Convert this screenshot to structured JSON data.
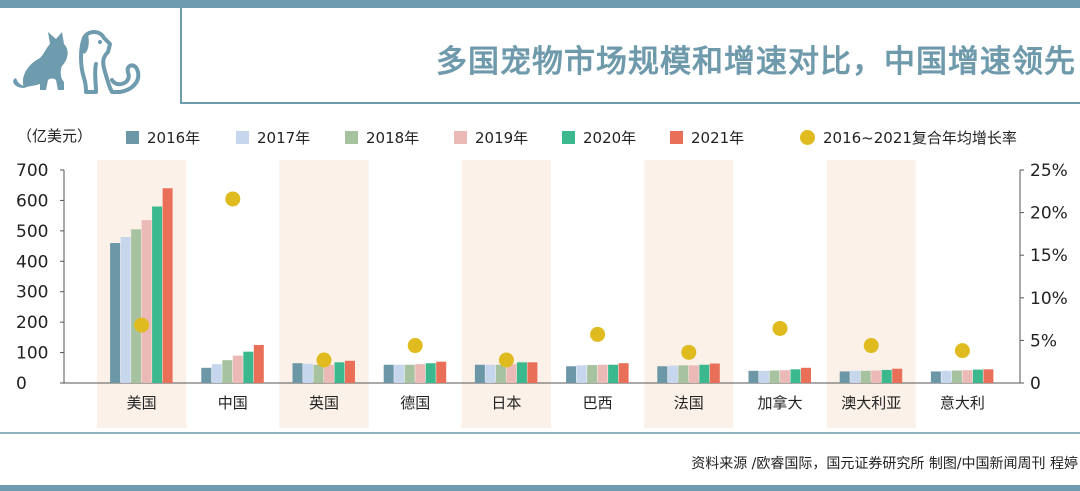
{
  "header": {
    "title": "多国宠物市场规模和增速对比，中国增速领先",
    "icons": [
      "cat-icon",
      "dog-icon"
    ]
  },
  "colors": {
    "frame": "#6e9bad",
    "title": "#6f9aac",
    "band": "#fbf1e9",
    "cagr_dot": "#e0bb1f"
  },
  "chart_data": {
    "type": "bar",
    "unit_label": "（亿美元）",
    "categories": [
      "美国",
      "中国",
      "英国",
      "德国",
      "日本",
      "巴西",
      "法国",
      "加拿大",
      "澳大利亚",
      "意大利"
    ],
    "series": [
      {
        "name": "2016年",
        "color": "#6b97a7",
        "values": [
          460,
          50,
          65,
          60,
          60,
          55,
          55,
          40,
          38,
          38
        ]
      },
      {
        "name": "2017年",
        "color": "#c5d6ed",
        "values": [
          480,
          62,
          63,
          60,
          60,
          58,
          57,
          40,
          40,
          40
        ]
      },
      {
        "name": "2018年",
        "color": "#a6c29e",
        "values": [
          505,
          75,
          60,
          60,
          60,
          59,
          58,
          41,
          40,
          41
        ]
      },
      {
        "name": "2019年",
        "color": "#ebbab6",
        "values": [
          535,
          90,
          60,
          62,
          62,
          60,
          58,
          42,
          41,
          42
        ]
      },
      {
        "name": "2020年",
        "color": "#3cb88e",
        "values": [
          580,
          103,
          68,
          65,
          68,
          60,
          60,
          45,
          43,
          44
        ]
      },
      {
        "name": "2021年",
        "color": "#e96f59",
        "values": [
          640,
          125,
          73,
          70,
          68,
          65,
          64,
          50,
          47,
          45
        ]
      }
    ],
    "cagr": {
      "name": "2016~2021复合年均增长率",
      "unit": "%",
      "values": [
        6.8,
        21.6,
        2.7,
        4.4,
        2.7,
        5.7,
        3.6,
        6.4,
        4.4,
        3.8
      ]
    },
    "ylim": [
      0,
      700
    ],
    "yticks": [
      0,
      100,
      200,
      300,
      400,
      500,
      600,
      700
    ],
    "y2lim": [
      0,
      25
    ],
    "y2ticks": [
      "0",
      "5%",
      "10%",
      "15%",
      "20%",
      "25%"
    ],
    "highlight_bands": [
      "美国",
      "英国",
      "日本",
      "法国",
      "澳大利亚"
    ],
    "legend_position": "top"
  },
  "source": "资料来源 /欧睿国际，国元证券研究所  制图/中国新闻周刊 程婷"
}
